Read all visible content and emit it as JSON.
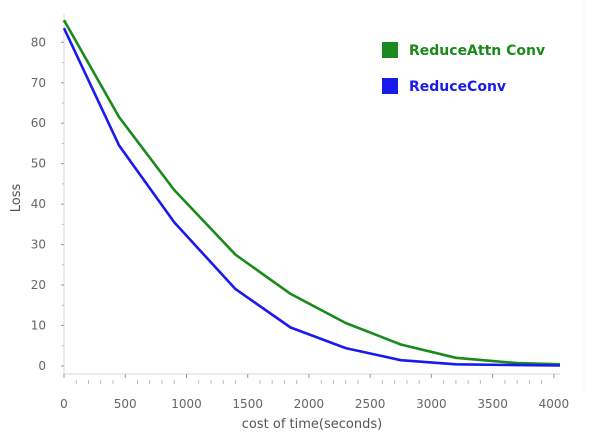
{
  "chart_data": {
    "type": "line",
    "xlabel": "cost of time(seconds)",
    "ylabel": "Loss",
    "xlim": [
      0,
      4050
    ],
    "ylim": [
      -2,
      87
    ],
    "x_ticks": [
      0,
      500,
      1000,
      1500,
      2000,
      2500,
      3000,
      3500,
      4000
    ],
    "y_ticks": [
      0,
      10,
      20,
      30,
      40,
      50,
      60,
      70,
      80
    ],
    "grid": false,
    "legend_position": "top-right",
    "series": [
      {
        "name": "ReduceAttn Conv",
        "color": "#1a8a1a",
        "x": [
          0,
          450,
          900,
          1400,
          1850,
          2300,
          2750,
          3200,
          3700,
          4050
        ],
        "y": [
          85.5,
          61.5,
          43.5,
          27.5,
          17.8,
          10.6,
          5.3,
          2.0,
          0.7,
          0.4
        ]
      },
      {
        "name": "ReduceConv",
        "color": "#1a1aee",
        "x": [
          0,
          450,
          900,
          1400,
          1850,
          2300,
          2750,
          3200,
          3700,
          4050
        ],
        "y": [
          83.5,
          54.5,
          35.5,
          19.0,
          9.5,
          4.4,
          1.4,
          0.4,
          0.2,
          0.1
        ]
      }
    ]
  }
}
